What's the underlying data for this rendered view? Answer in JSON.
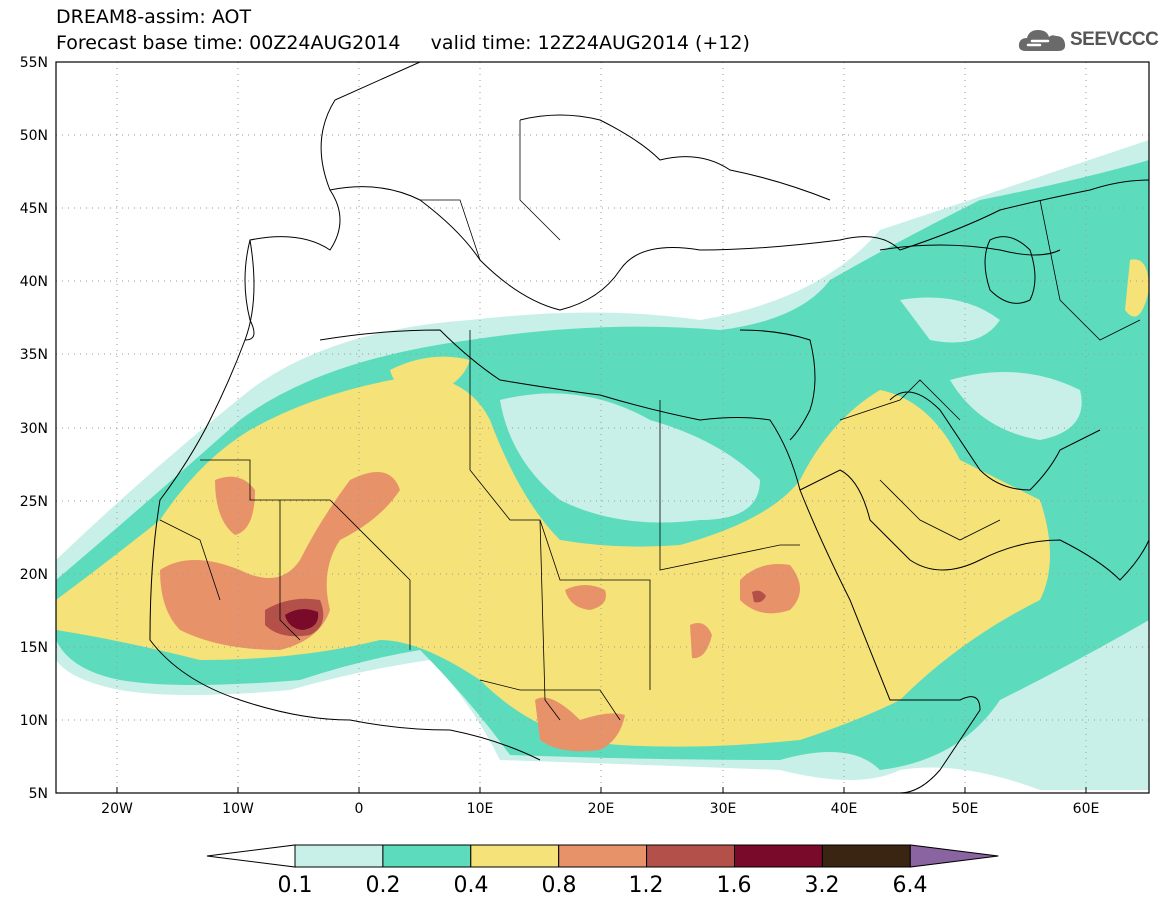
{
  "header": {
    "line1": "DREAM8-assim: AOT",
    "line2": "Forecast base time: 00Z24AUG2014     valid time: 12Z24AUG2014 (+12)"
  },
  "logo": {
    "text": "SEEVCCC",
    "icon": "cloud-icon"
  },
  "map": {
    "lon_range": [
      -25,
      65
    ],
    "lat_range": [
      5,
      55
    ],
    "grid": "dotted",
    "lon_ticks": [
      "20W",
      "10W",
      "0",
      "10E",
      "20E",
      "30E",
      "40E",
      "50E",
      "60E"
    ],
    "lat_ticks": [
      "5N",
      "10N",
      "15N",
      "20N",
      "25N",
      "30N",
      "35N",
      "40N",
      "45N",
      "50N",
      "55N"
    ]
  },
  "colorbar": {
    "labels": [
      "0.1",
      "0.2",
      "0.4",
      "0.8",
      "1.2",
      "1.6",
      "3.2",
      "6.4"
    ],
    "colors": [
      "#ffffff",
      "#c8f0e8",
      "#5cdcbc",
      "#f5e278",
      "#e8926a",
      "#b4504a",
      "#7a0a2a",
      "#3a2412",
      "#8a64a0"
    ]
  }
}
